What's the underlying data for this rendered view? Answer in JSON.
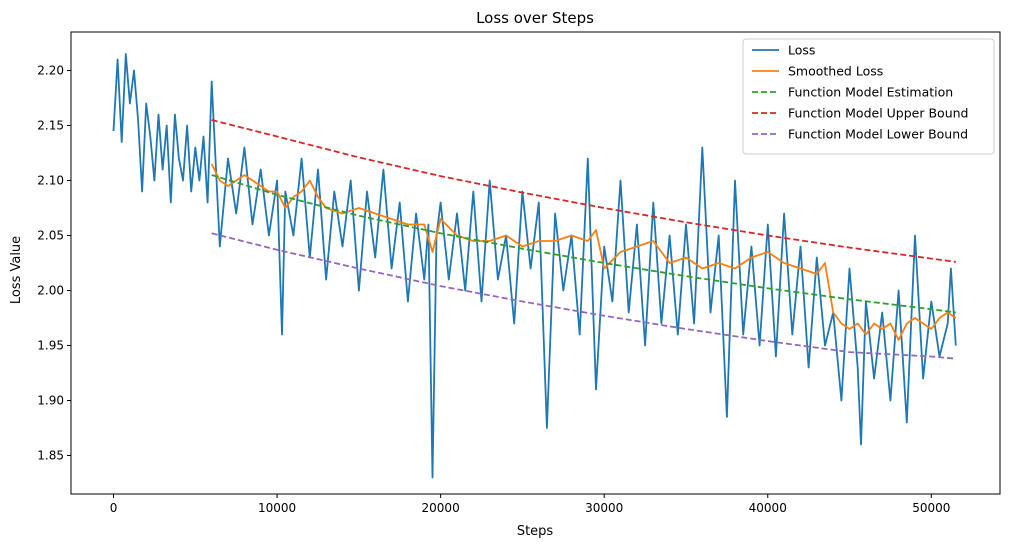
{
  "chart_data": {
    "type": "line",
    "title": "Loss over Steps",
    "xlabel": "Steps",
    "ylabel": "Loss Value",
    "xlim": [
      -2600,
      54200
    ],
    "ylim": [
      1.815,
      2.235
    ],
    "x_ticks": [
      0,
      10000,
      20000,
      30000,
      40000,
      50000
    ],
    "y_ticks": [
      1.85,
      1.9,
      1.95,
      2.0,
      2.05,
      2.1,
      2.15,
      2.2
    ],
    "grid": false,
    "legend_position": "top-right",
    "series": [
      {
        "name": "Loss",
        "color": "#1f77b4",
        "style": "solid",
        "x": [
          0,
          250,
          500,
          750,
          1000,
          1250,
          1500,
          1750,
          2000,
          2250,
          2500,
          2750,
          3000,
          3250,
          3500,
          3750,
          4000,
          4250,
          4500,
          4750,
          5000,
          5250,
          5500,
          5750,
          6000,
          6500,
          7000,
          7500,
          8000,
          8500,
          9000,
          9500,
          10000,
          10300,
          10500,
          11000,
          11500,
          12000,
          12500,
          13000,
          13500,
          14000,
          14500,
          15000,
          15500,
          16000,
          16500,
          17000,
          17500,
          18000,
          18500,
          19000,
          19250,
          19500,
          19750,
          20000,
          20500,
          21000,
          21500,
          22000,
          22500,
          23000,
          23500,
          24000,
          24500,
          25000,
          25500,
          26000,
          26500,
          27000,
          27500,
          28000,
          28500,
          29000,
          29500,
          30000,
          30500,
          31000,
          31500,
          32000,
          32500,
          33000,
          33500,
          34000,
          34500,
          35000,
          35500,
          36000,
          36500,
          37000,
          37500,
          38000,
          38500,
          39000,
          39500,
          40000,
          40500,
          41000,
          41500,
          42000,
          42500,
          43000,
          43500,
          44000,
          44500,
          45000,
          45500,
          45700,
          46000,
          46500,
          47000,
          47500,
          48000,
          48500,
          49000,
          49500,
          50000,
          50500,
          51000,
          51200,
          51500
        ],
        "y": [
          2.145,
          2.21,
          2.135,
          2.215,
          2.17,
          2.2,
          2.155,
          2.09,
          2.17,
          2.14,
          2.1,
          2.16,
          2.11,
          2.15,
          2.08,
          2.16,
          2.12,
          2.1,
          2.15,
          2.09,
          2.13,
          2.1,
          2.14,
          2.08,
          2.19,
          2.04,
          2.12,
          2.07,
          2.13,
          2.06,
          2.11,
          2.05,
          2.1,
          1.96,
          2.09,
          2.05,
          2.12,
          2.03,
          2.11,
          2.01,
          2.09,
          2.04,
          2.1,
          2.0,
          2.09,
          2.03,
          2.11,
          2.02,
          2.08,
          1.99,
          2.07,
          2.01,
          2.06,
          1.83,
          2.05,
          2.08,
          2.01,
          2.07,
          2.0,
          2.09,
          1.99,
          2.1,
          2.01,
          2.05,
          1.97,
          2.09,
          2.02,
          2.08,
          1.875,
          2.07,
          2.0,
          2.05,
          1.96,
          2.12,
          1.91,
          2.04,
          1.99,
          2.1,
          1.98,
          2.06,
          1.95,
          2.08,
          1.97,
          2.05,
          1.96,
          2.06,
          1.97,
          2.13,
          1.98,
          2.05,
          1.885,
          2.1,
          1.96,
          2.04,
          1.95,
          2.06,
          1.94,
          2.07,
          1.96,
          2.04,
          1.93,
          2.03,
          1.95,
          1.98,
          1.9,
          2.02,
          1.93,
          1.86,
          1.99,
          1.92,
          1.98,
          1.9,
          2.0,
          1.88,
          2.05,
          1.92,
          1.99,
          1.94,
          1.97,
          2.02,
          1.95
        ]
      },
      {
        "name": "Smoothed Loss",
        "color": "#ff7f0e",
        "style": "solid",
        "x": [
          6000,
          6500,
          7000,
          7500,
          8000,
          8500,
          9000,
          9500,
          10000,
          10500,
          11000,
          11500,
          12000,
          12500,
          13000,
          14000,
          15000,
          16000,
          17000,
          18000,
          19000,
          19500,
          20000,
          21000,
          22000,
          23000,
          24000,
          25000,
          26000,
          27000,
          28000,
          29000,
          29500,
          30000,
          31000,
          32000,
          33000,
          34000,
          35000,
          36000,
          37000,
          38000,
          39000,
          40000,
          41000,
          42000,
          43000,
          43500,
          44000,
          44500,
          45000,
          45500,
          46000,
          46500,
          47000,
          47500,
          48000,
          48500,
          49000,
          49500,
          50000,
          50500,
          51000,
          51500
        ],
        "y": [
          2.115,
          2.1,
          2.095,
          2.1,
          2.105,
          2.1,
          2.095,
          2.09,
          2.09,
          2.075,
          2.085,
          2.09,
          2.1,
          2.085,
          2.075,
          2.07,
          2.075,
          2.07,
          2.065,
          2.06,
          2.06,
          2.035,
          2.065,
          2.05,
          2.045,
          2.045,
          2.05,
          2.04,
          2.045,
          2.045,
          2.05,
          2.045,
          2.055,
          2.02,
          2.035,
          2.04,
          2.045,
          2.025,
          2.03,
          2.02,
          2.025,
          2.02,
          2.03,
          2.035,
          2.025,
          2.02,
          2.015,
          2.025,
          1.98,
          1.97,
          1.965,
          1.97,
          1.96,
          1.97,
          1.965,
          1.97,
          1.955,
          1.97,
          1.975,
          1.97,
          1.965,
          1.975,
          1.98,
          1.975
        ]
      },
      {
        "name": "Function Model Estimation",
        "color": "#2ca02c",
        "style": "dashed",
        "x": [
          6000,
          10000,
          15000,
          20000,
          25000,
          30000,
          35000,
          40000,
          45000,
          50000,
          51500
        ],
        "y": [
          2.105,
          2.087,
          2.068,
          2.052,
          2.038,
          2.025,
          2.013,
          2.002,
          1.992,
          1.983,
          1.98
        ]
      },
      {
        "name": "Function Model Upper Bound",
        "color": "#d62728",
        "style": "dashed",
        "x": [
          6000,
          10000,
          15000,
          20000,
          25000,
          30000,
          35000,
          40000,
          45000,
          50000,
          51500
        ],
        "y": [
          2.155,
          2.14,
          2.121,
          2.104,
          2.089,
          2.075,
          2.062,
          2.05,
          2.039,
          2.029,
          2.026
        ]
      },
      {
        "name": "Function Model Lower Bound",
        "color": "#9467bd",
        "style": "dashed",
        "x": [
          6000,
          10000,
          15000,
          20000,
          25000,
          30000,
          35000,
          40000,
          45000,
          50000,
          51500
        ],
        "y": [
          2.052,
          2.037,
          2.02,
          2.004,
          1.99,
          1.977,
          1.965,
          1.954,
          1.944,
          1.94,
          1.938
        ]
      }
    ]
  }
}
